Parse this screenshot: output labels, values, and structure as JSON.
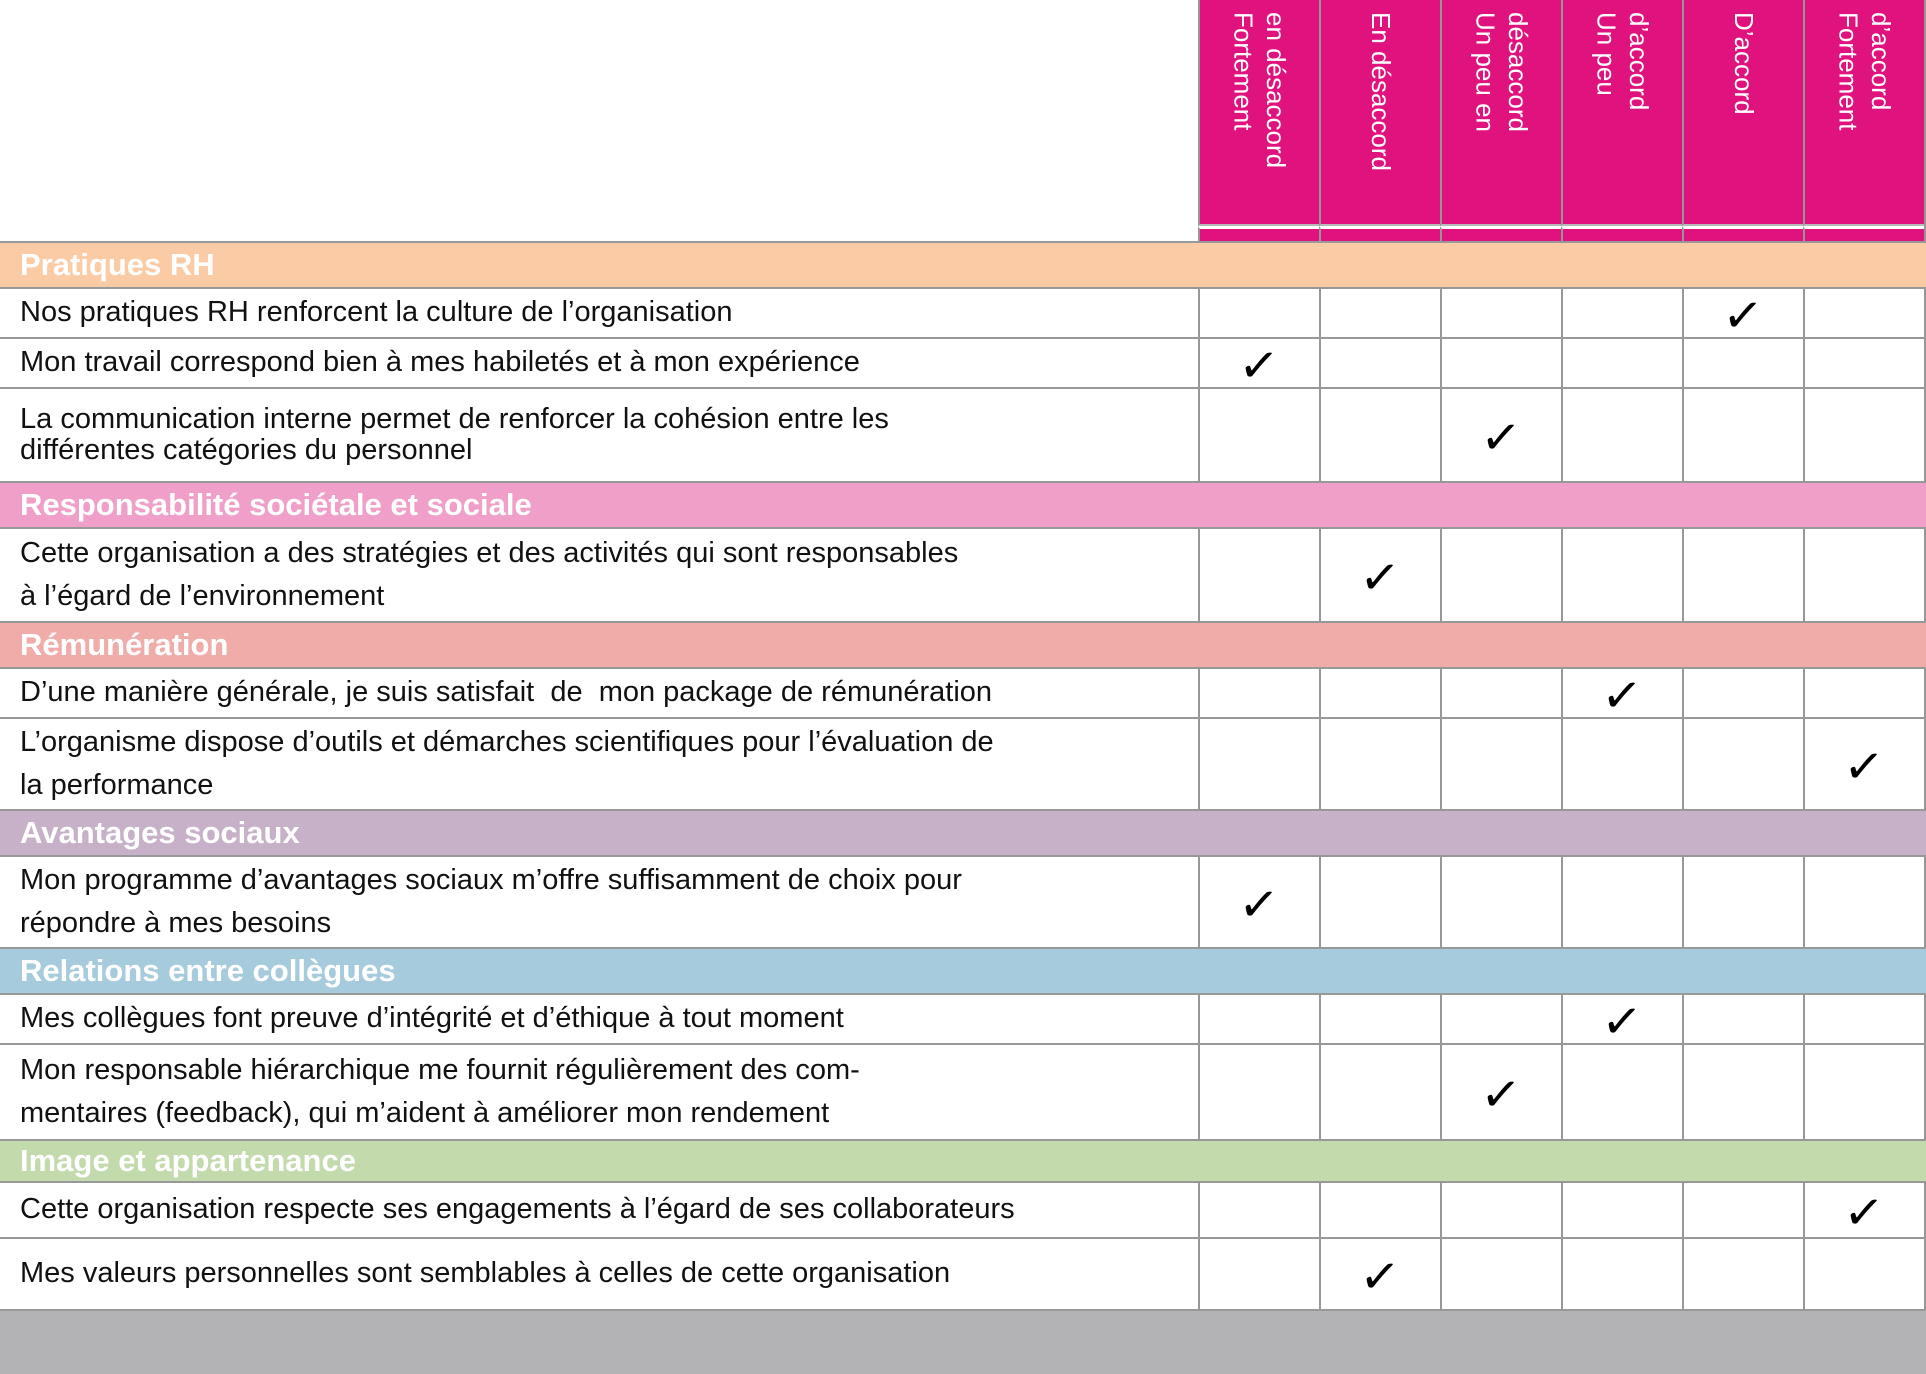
{
  "check_glyph": "✓",
  "colors": {
    "header_bg": "#E0127D",
    "header_text": "#FFFFFF",
    "grid_line": "#969696",
    "footer_bar": "#B3B3B5"
  },
  "header": {
    "columns": [
      {
        "label": "Fortement\nen désaccord"
      },
      {
        "label": "En désaccord"
      },
      {
        "label": "Un peu en\ndésaccord"
      },
      {
        "label": "Un peu\nd’accord"
      },
      {
        "label": "D’accord"
      },
      {
        "label": "Fortement\nd’accord"
      }
    ]
  },
  "sections": [
    {
      "title": "Pratiques RH",
      "color": "#FACBA4",
      "rows": [
        {
          "text": "Nos pratiques RH renforcent la culture de l’organisation",
          "answer_index": 5,
          "answer_label": "D’accord"
        },
        {
          "text": "Mon travail correspond bien à mes habiletés et à mon expérience",
          "answer_index": 1,
          "answer_label": "Fortement en désaccord"
        },
        {
          "text": "La communication interne permet de renforcer la cohésion entre les\ndifférentes catégories du personnel",
          "answer_index": 3,
          "answer_label": "Un peu en désaccord"
        }
      ]
    },
    {
      "title": "Responsabilité sociétale et sociale",
      "color": "#F09FC8",
      "rows": [
        {
          "text": "Cette organisation a des stratégies et des activités qui sont responsables\nà l’égard de l’environnement",
          "answer_index": 2,
          "answer_label": "En désaccord"
        }
      ]
    },
    {
      "title": "Rémunération",
      "color": "#EFACA9",
      "rows": [
        {
          "text": "D’une manière générale, je suis satisfait  de  mon package de rémunération",
          "answer_index": 4,
          "answer_label": "Un peu d’accord"
        },
        {
          "text": "L’organisme dispose d’outils et démarches scientifiques pour l’évaluation de\nla performance",
          "answer_index": 6,
          "answer_label": "Fortement d’accord"
        }
      ]
    },
    {
      "title": "Avantages sociaux",
      "color": "#C7B1C8",
      "rows": [
        {
          "text": "Mon programme d’avantages sociaux m’offre suffisamment de choix pour\nrépondre à mes besoins",
          "answer_index": 1,
          "answer_label": "Fortement en désaccord"
        }
      ]
    },
    {
      "title": "Relations entre collègues",
      "color": "#A5CBDD",
      "rows": [
        {
          "text": "Mes collègues font preuve d’intégrité et d’éthique à tout moment",
          "answer_index": 4,
          "answer_label": "Un peu d’accord"
        },
        {
          "text": "Mon responsable hiérarchique me fournit régulièrement des com-\nmentaires (feedback), qui m’aident à améliorer mon rendement",
          "answer_index": 3,
          "answer_label": "Un peu en désaccord"
        }
      ]
    },
    {
      "title": "Image et appartenance",
      "color": "#C2DAAC",
      "rows": [
        {
          "text": "Cette organisation respecte ses engagements à l’égard de ses collaborateurs",
          "answer_index": 6,
          "answer_label": "Fortement d’accord"
        },
        {
          "text": "Mes valeurs personnelles sont semblables à celles de cette organisation",
          "answer_index": 2,
          "answer_label": "En désaccord"
        }
      ]
    }
  ]
}
